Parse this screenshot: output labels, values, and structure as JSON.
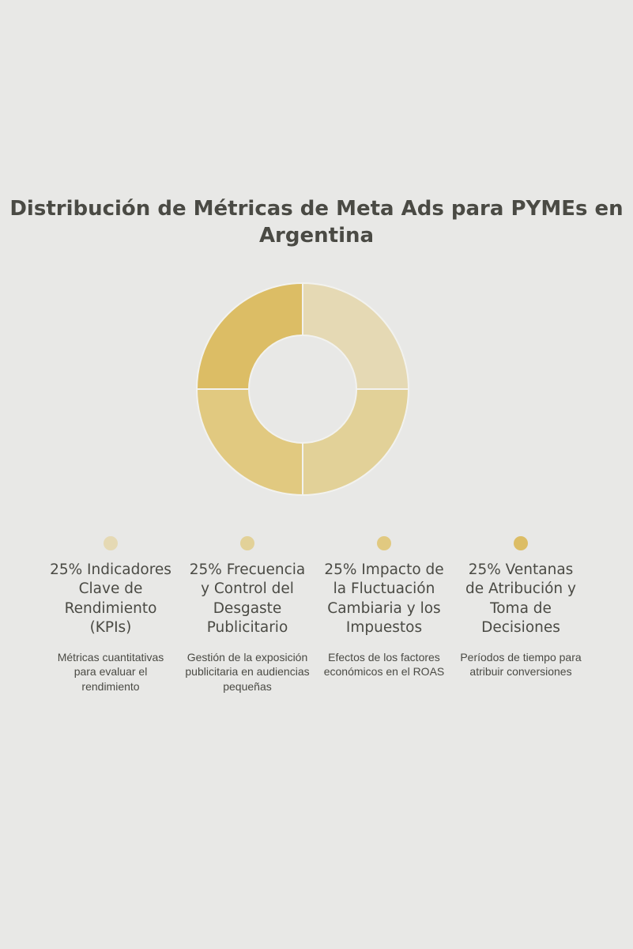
{
  "chart_data": {
    "type": "pie",
    "title": "Distribución de Métricas de Meta Ads para PYMEs en Argentina",
    "slices": [
      {
        "label": "25% Indicadores Clave de Rendimiento (KPIs)",
        "value": 25,
        "description": "Métricas cuantitativas para evaluar el rendimiento",
        "color": "#e5d9b4"
      },
      {
        "label": "25% Frecuencia y Control del Desgaste Publicitario",
        "value": 25,
        "description": "Gestión de la exposición publicitaria en audiencias pequeñas",
        "color": "#e2d198"
      },
      {
        "label": "25% Impacto de la Fluctuación Cambiaria y los Impuestos",
        "value": 25,
        "description": "Efectos de los factores económicos en el ROAS",
        "color": "#e1c980"
      },
      {
        "label": "25% Ventanas de Atribución y Toma de Decisiones",
        "value": 25,
        "description": "Períodos de tiempo para atribuir conversiones",
        "color": "#dcbd65"
      }
    ],
    "legend_position": "bottom"
  }
}
